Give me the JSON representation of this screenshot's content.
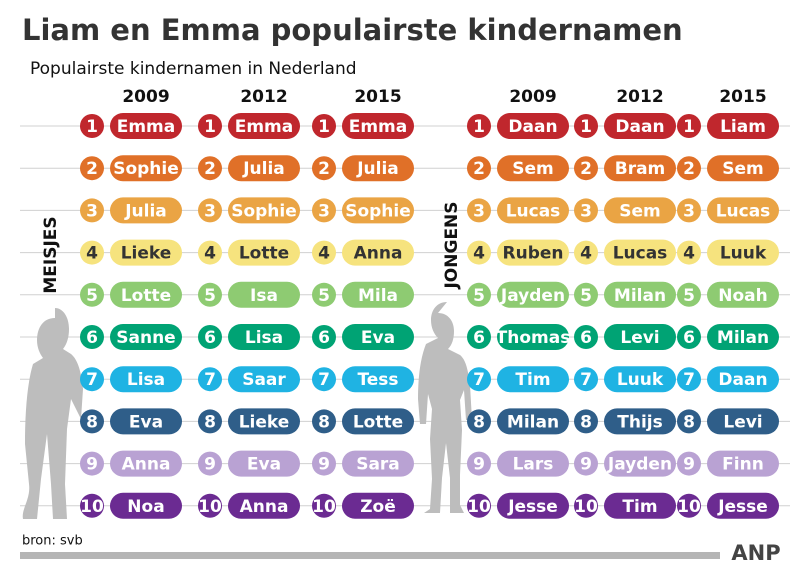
{
  "title": "Liam en Emma populairste kindernamen",
  "subtitle": "Populairste kindernamen in Nederland",
  "ranks": [
    {
      "rank": 1,
      "color": "#c0272d"
    },
    {
      "rank": 2,
      "color": "#e07028"
    },
    {
      "rank": 3,
      "color": "#eaa444"
    },
    {
      "rank": 4,
      "color": "#f6e37e"
    },
    {
      "rank": 5,
      "color": "#8ecb72"
    },
    {
      "rank": 6,
      "color": "#00a374"
    },
    {
      "rank": 7,
      "color": "#1fb3e3"
    },
    {
      "rank": 8,
      "color": "#2f5e89"
    },
    {
      "rank": 9,
      "color": "#b9a2d3"
    },
    {
      "rank": 10,
      "color": "#6b2b92"
    }
  ],
  "groups": [
    {
      "label": "MEISJES",
      "columns": [
        {
          "year": "2009",
          "names": [
            "Emma",
            "Sophie",
            "Julia",
            "Lieke",
            "Lotte",
            "Sanne",
            "Lisa",
            "Eva",
            "Anna",
            "Noa"
          ]
        },
        {
          "year": "2012",
          "names": [
            "Emma",
            "Julia",
            "Sophie",
            "Lotte",
            "Isa",
            "Lisa",
            "Saar",
            "Lieke",
            "Eva",
            "Anna"
          ]
        },
        {
          "year": "2015",
          "names": [
            "Emma",
            "Julia",
            "Sophie",
            "Anna",
            "Mila",
            "Eva",
            "Tess",
            "Lotte",
            "Sara",
            "Zoë"
          ]
        }
      ]
    },
    {
      "label": "JONGENS",
      "columns": [
        {
          "year": "2009",
          "names": [
            "Daan",
            "Sem",
            "Lucas",
            "Ruben",
            "Jayden",
            "Thomas",
            "Tim",
            "Milan",
            "Lars",
            "Jesse"
          ]
        },
        {
          "year": "2012",
          "names": [
            "Daan",
            "Bram",
            "Sem",
            "Lucas",
            "Milan",
            "Levi",
            "Luuk",
            "Thijs",
            "Jayden",
            "Tim"
          ]
        },
        {
          "year": "2015",
          "names": [
            "Liam",
            "Sem",
            "Lucas",
            "Luuk",
            "Noah",
            "Milan",
            "Daan",
            "Levi",
            "Finn",
            "Jesse"
          ]
        }
      ]
    }
  ],
  "source": "bron: svb",
  "logo": "ANP"
}
